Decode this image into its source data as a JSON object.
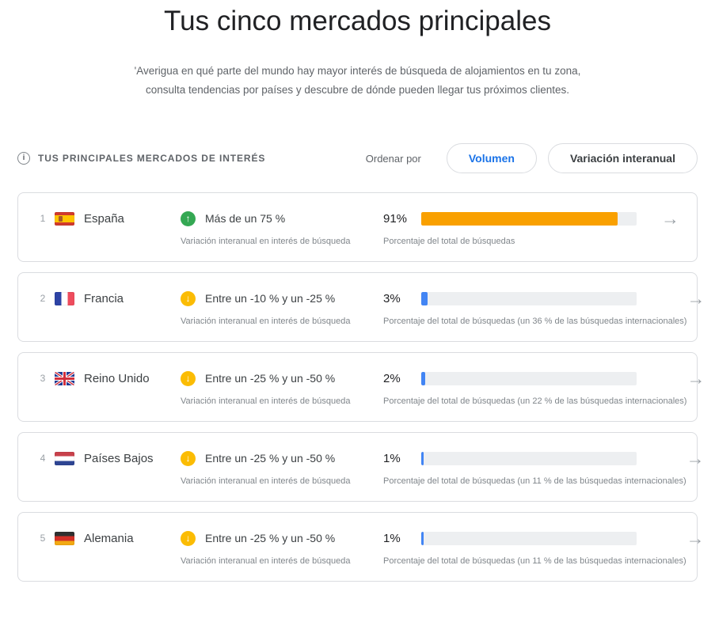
{
  "header": {
    "title": "Tus cinco mercados principales",
    "description": "'Averigua en qué parte del mundo hay mayor interés de búsqueda de alojamientos en tu zona, consulta tendencias por países y descubre de dónde pueden llegar tus próximos clientes."
  },
  "toolbar": {
    "section_label": "TUS PRINCIPALES MERCADOS DE INTERÉS",
    "sort_label": "Ordenar por",
    "sort_options": [
      {
        "label": "Volumen",
        "selected": true
      },
      {
        "label": "Variación interanual",
        "selected": false
      }
    ]
  },
  "icons": {
    "info": "i",
    "up_arrow": "↑",
    "down_arrow": "↓",
    "row_arrow": "→"
  },
  "colors": {
    "accent": "#1a73e8",
    "trend_up": "#34a853",
    "trend_down": "#fbbc04",
    "bar_orange": "#f9a000",
    "bar_blue": "#4285f4"
  },
  "markets": [
    {
      "rank": "1",
      "country": "España",
      "flag": "es",
      "trend": "up",
      "variation_label": "Más de un 75 %",
      "variation_sublabel": "Variación interanual en interés de búsqueda",
      "volume_pct": "91%",
      "volume_value": 91,
      "bar_color": "orange",
      "volume_sublabel": "Porcentaje del total de búsquedas"
    },
    {
      "rank": "2",
      "country": "Francia",
      "flag": "fr",
      "trend": "down",
      "variation_label": "Entre un -10 % y un -25 %",
      "variation_sublabel": "Variación interanual en interés de búsqueda",
      "volume_pct": "3%",
      "volume_value": 3,
      "bar_color": "blue",
      "volume_sublabel": "Porcentaje del total de búsquedas (un 36 % de las búsquedas internacionales)"
    },
    {
      "rank": "3",
      "country": "Reino Unido",
      "flag": "gb",
      "trend": "down",
      "variation_label": "Entre un -25 % y un -50 %",
      "variation_sublabel": "Variación interanual en interés de búsqueda",
      "volume_pct": "2%",
      "volume_value": 2,
      "bar_color": "blue",
      "volume_sublabel": "Porcentaje del total de búsquedas (un 22 % de las búsquedas internacionales)"
    },
    {
      "rank": "4",
      "country": "Países Bajos",
      "flag": "nl",
      "trend": "down",
      "variation_label": "Entre un -25 % y un -50 %",
      "variation_sublabel": "Variación interanual en interés de búsqueda",
      "volume_pct": "1%",
      "volume_value": 1,
      "bar_color": "blue",
      "volume_sublabel": "Porcentaje del total de búsquedas (un 11 % de las búsquedas internacionales)"
    },
    {
      "rank": "5",
      "country": "Alemania",
      "flag": "de",
      "trend": "down",
      "variation_label": "Entre un -25 % y un -50 %",
      "variation_sublabel": "Variación interanual en interés de búsqueda",
      "volume_pct": "1%",
      "volume_value": 1,
      "bar_color": "blue",
      "volume_sublabel": "Porcentaje del total de búsquedas (un 11 % de las búsquedas internacionales)"
    }
  ]
}
